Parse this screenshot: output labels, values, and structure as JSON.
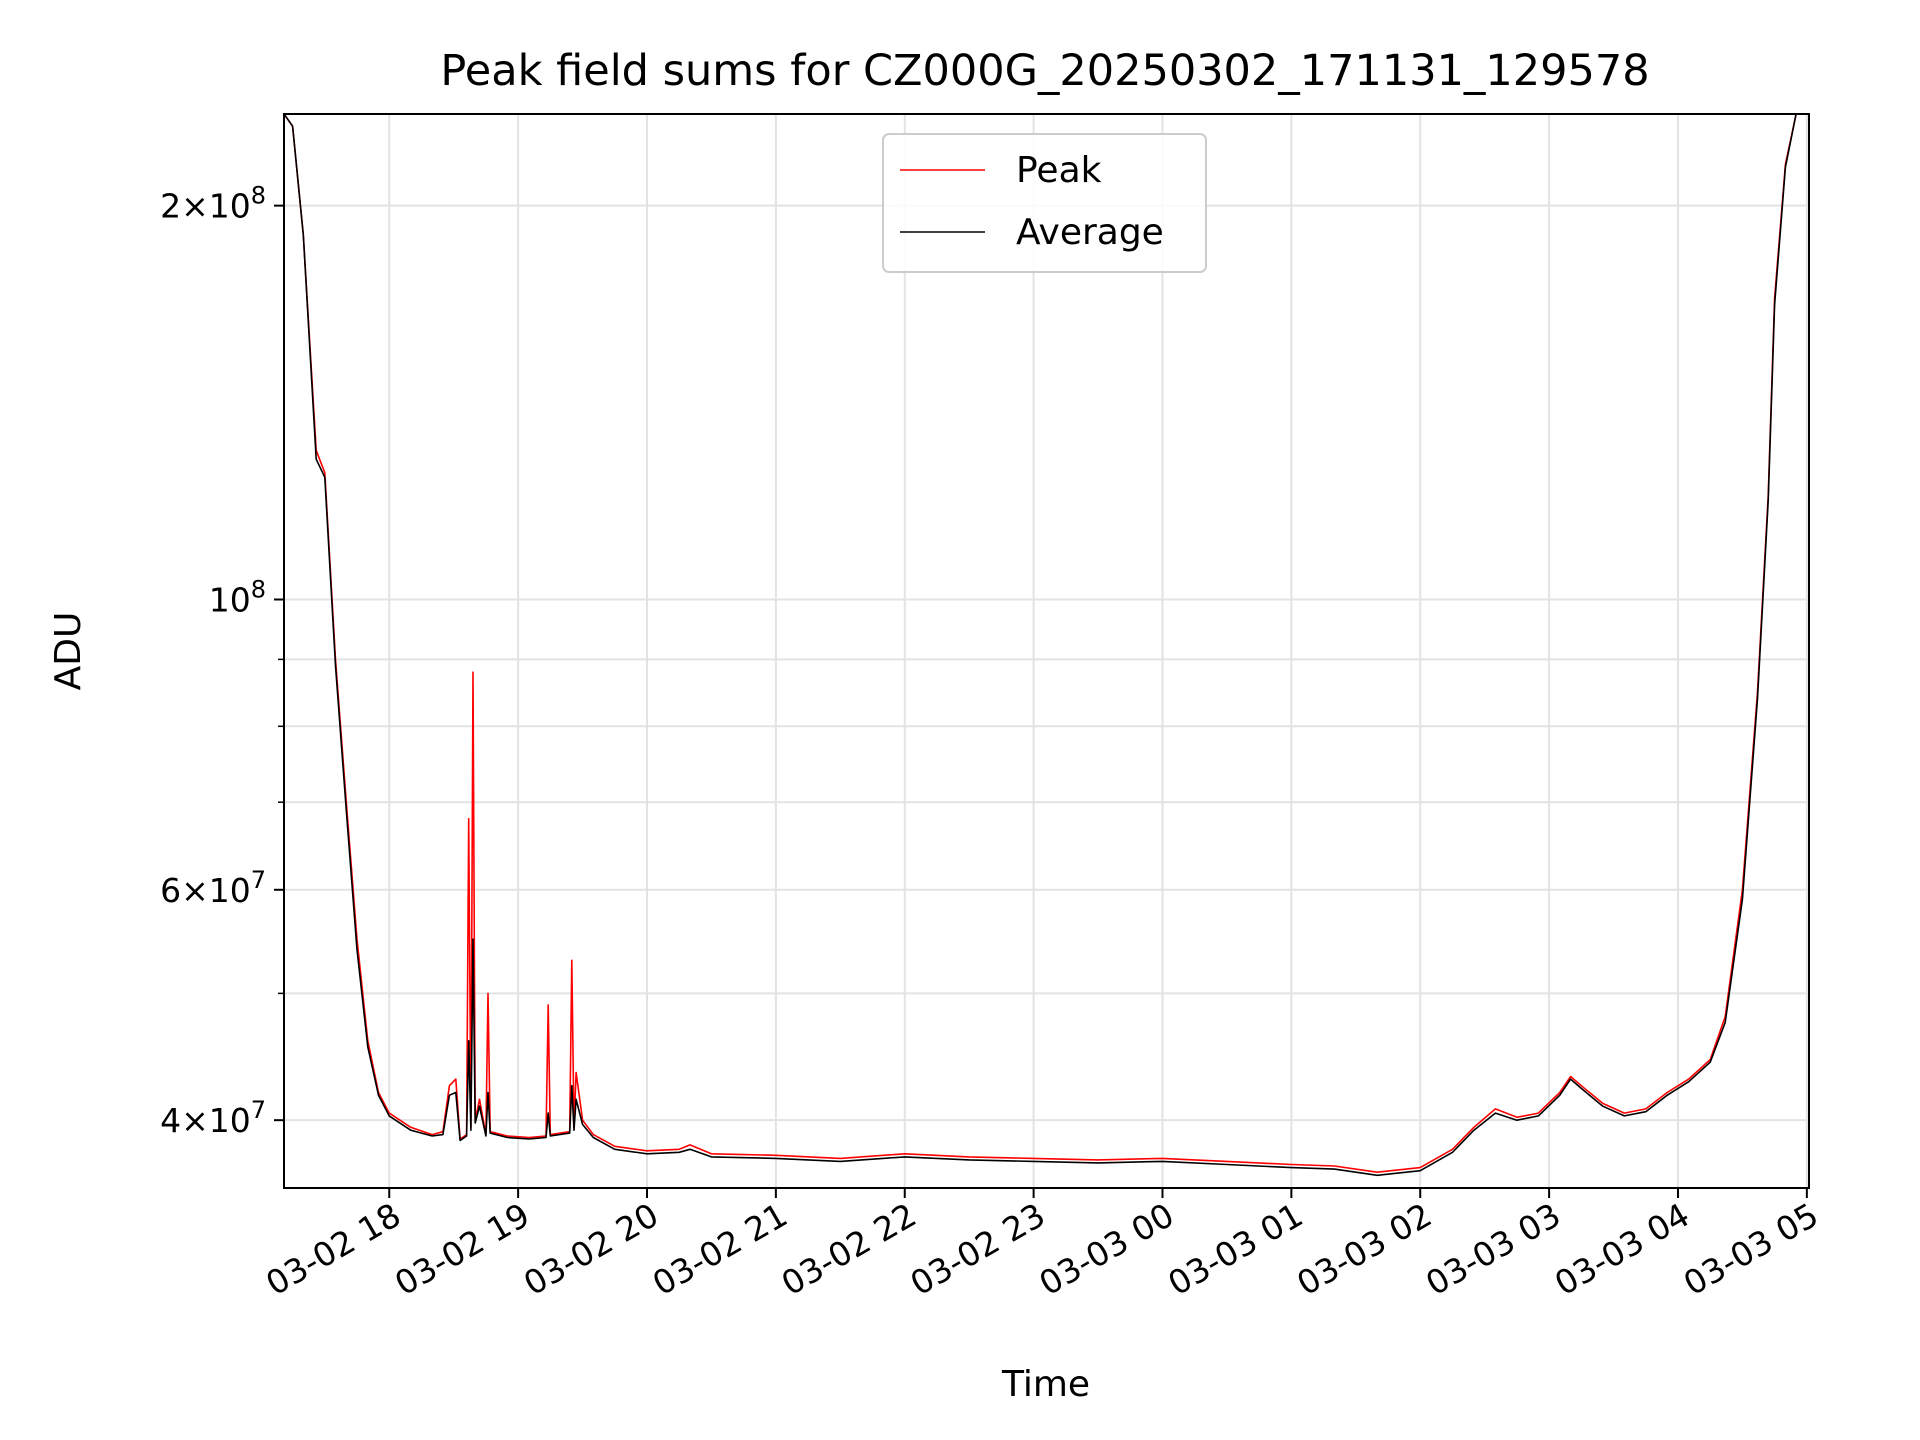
{
  "chart_data": {
    "type": "line",
    "title": "Peak field sums for CZ000G_20250302_171131_129578",
    "xlabel": "Time",
    "ylabel": "ADU",
    "y_scale": "log",
    "ylim": [
      35500000,
      235000000
    ],
    "xlim": [
      "03-02 17:11",
      "03-03 05:01"
    ],
    "x_ticks": [
      "03-02 18",
      "03-02 19",
      "03-02 20",
      "03-02 21",
      "03-02 22",
      "03-02 23",
      "03-03 00",
      "03-03 01",
      "03-03 02",
      "03-03 03",
      "03-03 04",
      "03-03 05"
    ],
    "y_major_ticks": [
      {
        "value": 40000000,
        "mantissa": "4",
        "exp": "7"
      },
      {
        "value": 60000000,
        "mantissa": "6",
        "exp": "7"
      },
      {
        "value": 100000000,
        "mantissa": "",
        "exp": "8"
      },
      {
        "value": 200000000,
        "mantissa": "2",
        "exp": "8"
      }
    ],
    "y_minor_ticks": [
      50000000,
      70000000,
      80000000,
      90000000
    ],
    "grid": true,
    "legend_position": "upper-center",
    "series": [
      {
        "name": "Peak",
        "color": "#ff0000",
        "points": [
          [
            "03-02 17:11",
            235000000
          ],
          [
            "03-02 17:15",
            230000000
          ],
          [
            "03-02 17:20",
            190000000
          ],
          [
            "03-02 17:26",
            130000000
          ],
          [
            "03-02 17:30",
            125000000
          ],
          [
            "03-02 17:35",
            90000000
          ],
          [
            "03-02 17:40",
            70000000
          ],
          [
            "03-02 17:45",
            55000000
          ],
          [
            "03-02 17:50",
            46000000
          ],
          [
            "03-02 17:55",
            42000000
          ],
          [
            "03-02 18:00",
            40500000
          ],
          [
            "03-02 18:10",
            39500000
          ],
          [
            "03-02 18:20",
            39000000
          ],
          [
            "03-02 18:25",
            39200000
          ],
          [
            "03-02 18:28",
            42500000
          ],
          [
            "03-02 18:31",
            43000000
          ],
          [
            "03-02 18:33",
            38700000
          ],
          [
            "03-02 18:36",
            39000000
          ],
          [
            "03-02 18:37",
            68000000
          ],
          [
            "03-02 18:38",
            39500000
          ],
          [
            "03-02 18:39",
            88000000
          ],
          [
            "03-02 18:40",
            40000000
          ],
          [
            "03-02 18:42",
            41500000
          ],
          [
            "03-02 18:45",
            39000000
          ],
          [
            "03-02 18:46",
            50000000
          ],
          [
            "03-02 18:47",
            39200000
          ],
          [
            "03-02 18:55",
            38900000
          ],
          [
            "03-02 19:05",
            38800000
          ],
          [
            "03-02 19:13",
            38900000
          ],
          [
            "03-02 19:14",
            49000000
          ],
          [
            "03-02 19:15",
            39000000
          ],
          [
            "03-02 19:24",
            39200000
          ],
          [
            "03-02 19:25",
            53000000
          ],
          [
            "03-02 19:26",
            39500000
          ],
          [
            "03-02 19:27",
            43500000
          ],
          [
            "03-02 19:30",
            40000000
          ],
          [
            "03-02 19:35",
            39000000
          ],
          [
            "03-02 19:45",
            38200000
          ],
          [
            "03-02 20:00",
            37900000
          ],
          [
            "03-02 20:15",
            38000000
          ],
          [
            "03-02 20:20",
            38300000
          ],
          [
            "03-02 20:30",
            37700000
          ],
          [
            "03-02 21:00",
            37600000
          ],
          [
            "03-02 21:30",
            37400000
          ],
          [
            "03-02 22:00",
            37700000
          ],
          [
            "03-02 22:30",
            37500000
          ],
          [
            "03-02 23:00",
            37400000
          ],
          [
            "03-02 23:30",
            37300000
          ],
          [
            "03-03 00:00",
            37400000
          ],
          [
            "03-03 00:30",
            37200000
          ],
          [
            "03-03 01:00",
            37000000
          ],
          [
            "03-03 01:20",
            36900000
          ],
          [
            "03-03 01:40",
            36500000
          ],
          [
            "03-03 02:00",
            36800000
          ],
          [
            "03-03 02:15",
            38000000
          ],
          [
            "03-03 02:25",
            39500000
          ],
          [
            "03-03 02:35",
            40800000
          ],
          [
            "03-03 02:45",
            40200000
          ],
          [
            "03-03 02:55",
            40500000
          ],
          [
            "03-03 03:05",
            42000000
          ],
          [
            "03-03 03:10",
            43200000
          ],
          [
            "03-03 03:15",
            42500000
          ],
          [
            "03-03 03:25",
            41200000
          ],
          [
            "03-03 03:35",
            40500000
          ],
          [
            "03-03 03:45",
            40800000
          ],
          [
            "03-03 03:55",
            42000000
          ],
          [
            "03-03 04:05",
            43000000
          ],
          [
            "03-03 04:15",
            44500000
          ],
          [
            "03-03 04:22",
            48000000
          ],
          [
            "03-03 04:30",
            60000000
          ],
          [
            "03-03 04:37",
            85000000
          ],
          [
            "03-03 04:42",
            120000000
          ],
          [
            "03-03 04:45",
            170000000
          ],
          [
            "03-03 04:50",
            215000000
          ],
          [
            "03-03 04:55",
            235000000
          ],
          [
            "03-03 05:01",
            235000000
          ]
        ]
      },
      {
        "name": "Average",
        "color": "#000000",
        "points": [
          [
            "03-02 17:11",
            235000000
          ],
          [
            "03-02 17:15",
            230000000
          ],
          [
            "03-02 17:20",
            190000000
          ],
          [
            "03-02 17:26",
            128000000
          ],
          [
            "03-02 17:30",
            124000000
          ],
          [
            "03-02 17:35",
            89000000
          ],
          [
            "03-02 17:40",
            69000000
          ],
          [
            "03-02 17:45",
            54000000
          ],
          [
            "03-02 17:50",
            45500000
          ],
          [
            "03-02 17:55",
            41800000
          ],
          [
            "03-02 18:00",
            40300000
          ],
          [
            "03-02 18:10",
            39300000
          ],
          [
            "03-02 18:20",
            38900000
          ],
          [
            "03-02 18:25",
            39000000
          ],
          [
            "03-02 18:28",
            41800000
          ],
          [
            "03-02 18:31",
            42000000
          ],
          [
            "03-02 18:33",
            38600000
          ],
          [
            "03-02 18:36",
            38900000
          ],
          [
            "03-02 18:37",
            46000000
          ],
          [
            "03-02 18:38",
            39300000
          ],
          [
            "03-02 18:39",
            55000000
          ],
          [
            "03-02 18:40",
            39800000
          ],
          [
            "03-02 18:42",
            41000000
          ],
          [
            "03-02 18:45",
            38900000
          ],
          [
            "03-02 18:46",
            42000000
          ],
          [
            "03-02 18:47",
            39100000
          ],
          [
            "03-02 18:55",
            38800000
          ],
          [
            "03-02 19:05",
            38700000
          ],
          [
            "03-02 19:13",
            38800000
          ],
          [
            "03-02 19:14",
            40500000
          ],
          [
            "03-02 19:15",
            38900000
          ],
          [
            "03-02 19:24",
            39100000
          ],
          [
            "03-02 19:25",
            42500000
          ],
          [
            "03-02 19:26",
            39300000
          ],
          [
            "03-02 19:27",
            41500000
          ],
          [
            "03-02 19:30",
            39700000
          ],
          [
            "03-02 19:35",
            38800000
          ],
          [
            "03-02 19:45",
            38000000
          ],
          [
            "03-02 20:00",
            37700000
          ],
          [
            "03-02 20:15",
            37800000
          ],
          [
            "03-02 20:20",
            38000000
          ],
          [
            "03-02 20:30",
            37500000
          ],
          [
            "03-02 21:00",
            37400000
          ],
          [
            "03-02 21:30",
            37200000
          ],
          [
            "03-02 22:00",
            37500000
          ],
          [
            "03-02 22:30",
            37300000
          ],
          [
            "03-02 23:00",
            37200000
          ],
          [
            "03-02 23:30",
            37100000
          ],
          [
            "03-03 00:00",
            37200000
          ],
          [
            "03-03 00:30",
            37000000
          ],
          [
            "03-03 01:00",
            36800000
          ],
          [
            "03-03 01:20",
            36700000
          ],
          [
            "03-03 01:40",
            36300000
          ],
          [
            "03-03 02:00",
            36600000
          ],
          [
            "03-03 02:15",
            37800000
          ],
          [
            "03-03 02:25",
            39300000
          ],
          [
            "03-03 02:35",
            40500000
          ],
          [
            "03-03 02:45",
            40000000
          ],
          [
            "03-03 02:55",
            40300000
          ],
          [
            "03-03 03:05",
            41800000
          ],
          [
            "03-03 03:10",
            43000000
          ],
          [
            "03-03 03:15",
            42300000
          ],
          [
            "03-03 03:25",
            41000000
          ],
          [
            "03-03 03:35",
            40300000
          ],
          [
            "03-03 03:45",
            40600000
          ],
          [
            "03-03 03:55",
            41800000
          ],
          [
            "03-03 04:05",
            42800000
          ],
          [
            "03-03 04:15",
            44300000
          ],
          [
            "03-03 04:22",
            47500000
          ],
          [
            "03-03 04:30",
            59000000
          ],
          [
            "03-03 04:37",
            84000000
          ],
          [
            "03-03 04:42",
            119000000
          ],
          [
            "03-03 04:45",
            168000000
          ],
          [
            "03-03 04:50",
            214000000
          ],
          [
            "03-03 04:55",
            235000000
          ],
          [
            "03-03 05:01",
            235000000
          ]
        ]
      }
    ]
  }
}
